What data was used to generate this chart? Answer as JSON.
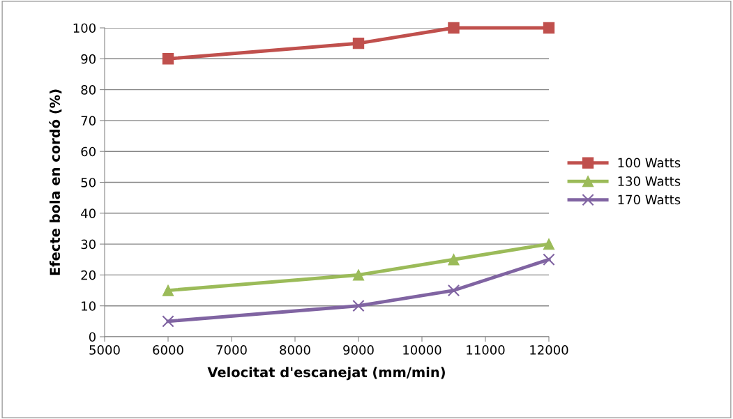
{
  "chart_data": {
    "type": "line",
    "xlabel": "Velocitat d'escanejat (mm/min)",
    "ylabel": "Efecte bola en cordó (%)",
    "x": [
      6000,
      9000,
      10500,
      12000
    ],
    "series": [
      {
        "name": "100 Watts",
        "color": "#c0504d",
        "marker": "square",
        "values": [
          90,
          95,
          100,
          100
        ]
      },
      {
        "name": "130 Watts",
        "color": "#9bbb59",
        "marker": "triangle",
        "values": [
          15,
          20,
          25,
          30
        ]
      },
      {
        "name": "170 Watts",
        "color": "#8064a2",
        "marker": "cross",
        "values": [
          5,
          10,
          15,
          25
        ]
      }
    ],
    "xlim": [
      5000,
      12000
    ],
    "xticks": [
      5000,
      6000,
      7000,
      8000,
      9000,
      10000,
      11000,
      12000
    ],
    "ylim": [
      0,
      100
    ],
    "yticks": [
      0,
      10,
      20,
      30,
      40,
      50,
      60,
      70,
      80,
      90,
      100
    ],
    "grid": "y",
    "legend": "right",
    "line_style": "solid"
  }
}
